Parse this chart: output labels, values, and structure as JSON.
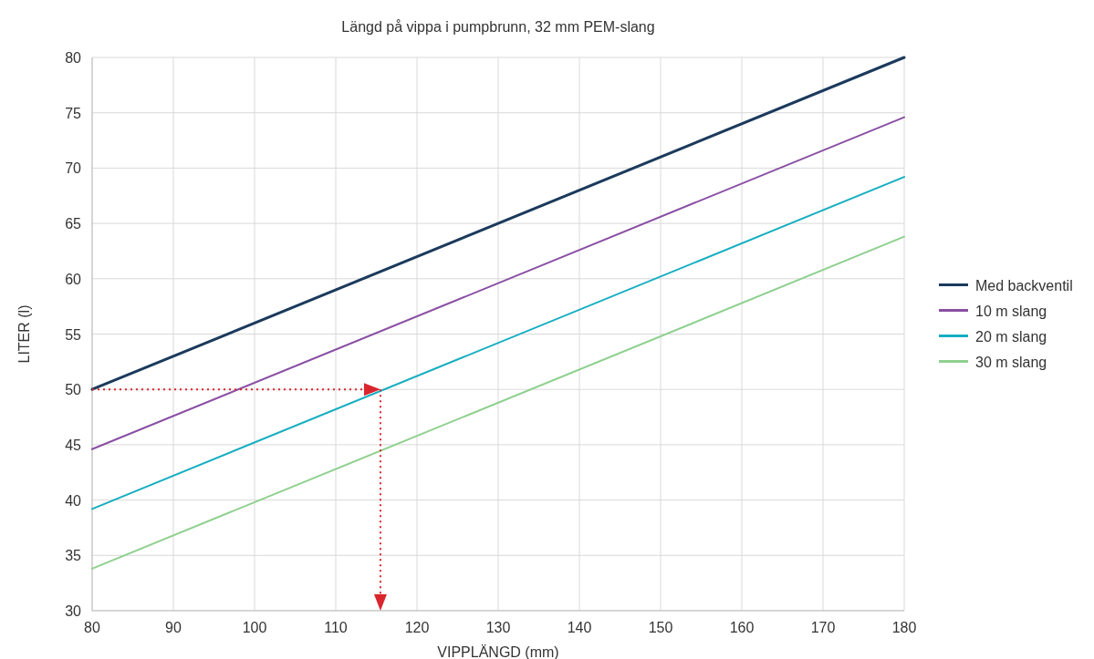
{
  "chart_data": {
    "type": "line",
    "title": "Längd på vippa i pumpbrunn, 32 mm PEM-slang",
    "xlabel": "VIPPLÄNGD (mm)",
    "ylabel": "LITER (l)",
    "x": [
      80,
      180
    ],
    "series": [
      {
        "name": "Med backventil",
        "color": "#1b3a5c",
        "values": [
          50,
          80
        ]
      },
      {
        "name": "10 m slang",
        "color": "#8a4fa3",
        "values": [
          44.6,
          74.6
        ]
      },
      {
        "name": "20 m slang",
        "color": "#16aec0",
        "values": [
          39.2,
          69.2
        ]
      },
      {
        "name": "30 m slang",
        "color": "#8fd08f",
        "values": [
          33.8,
          63.8
        ]
      }
    ],
    "xlim": [
      80,
      180
    ],
    "xticks": [
      80,
      90,
      100,
      110,
      120,
      130,
      140,
      150,
      160,
      170,
      180
    ],
    "ylim": [
      30,
      80
    ],
    "yticks": [
      30,
      35,
      40,
      45,
      50,
      55,
      60,
      65,
      70,
      75,
      80
    ],
    "grid": true,
    "legend": "right",
    "marker": "none",
    "line_style": "solid"
  }
}
